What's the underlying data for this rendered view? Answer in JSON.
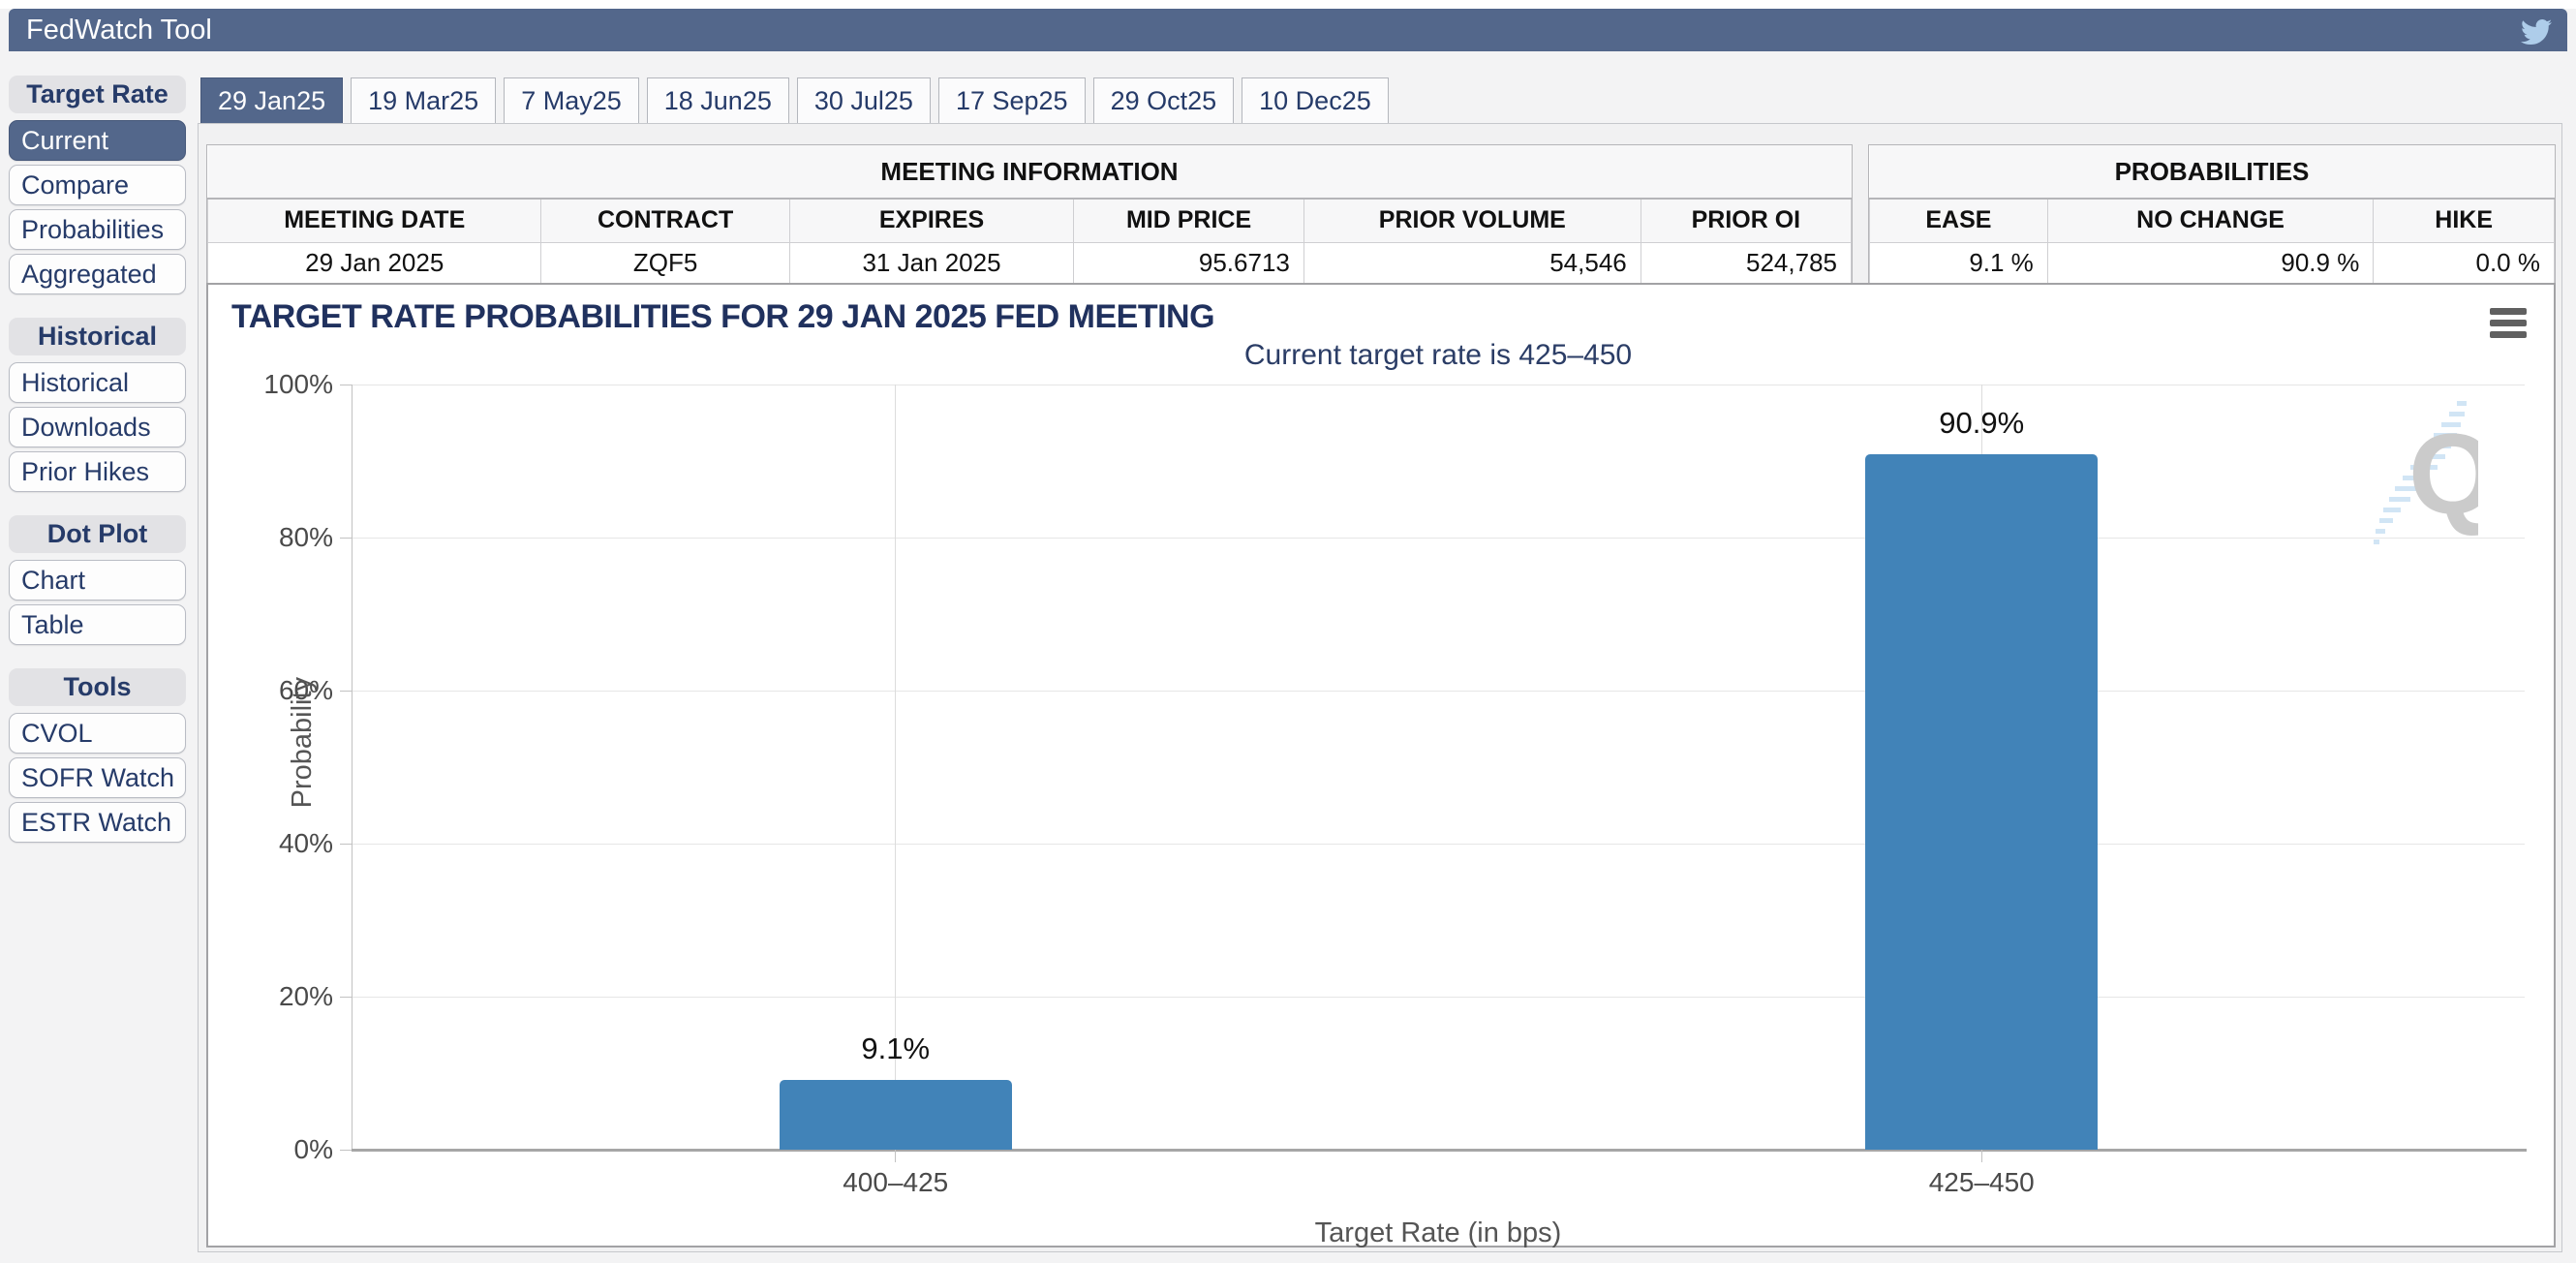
{
  "header": {
    "title": "FedWatch Tool"
  },
  "sidebar": {
    "groups": [
      {
        "title": "Target Rate",
        "items": [
          {
            "label": "Current",
            "selected": true
          },
          {
            "label": "Compare",
            "selected": false
          },
          {
            "label": "Probabilities",
            "selected": false
          },
          {
            "label": "Aggregated",
            "selected": false
          }
        ]
      },
      {
        "title": "Historical",
        "items": [
          {
            "label": "Historical",
            "selected": false
          },
          {
            "label": "Downloads",
            "selected": false
          },
          {
            "label": "Prior Hikes",
            "selected": false
          }
        ]
      },
      {
        "title": "Dot Plot",
        "items": [
          {
            "label": "Chart",
            "selected": false
          },
          {
            "label": "Table",
            "selected": false
          }
        ]
      },
      {
        "title": "Tools",
        "items": [
          {
            "label": "CVOL",
            "selected": false
          },
          {
            "label": "SOFR Watch",
            "selected": false
          },
          {
            "label": "ESTR Watch",
            "selected": false
          }
        ]
      }
    ]
  },
  "tabs": [
    {
      "label": "29 Jan25",
      "selected": true
    },
    {
      "label": "19 Mar25",
      "selected": false
    },
    {
      "label": "7 May25",
      "selected": false
    },
    {
      "label": "18 Jun25",
      "selected": false
    },
    {
      "label": "30 Jul25",
      "selected": false
    },
    {
      "label": "17 Sep25",
      "selected": false
    },
    {
      "label": "29 Oct25",
      "selected": false
    },
    {
      "label": "10 Dec25",
      "selected": false
    }
  ],
  "meeting_info": {
    "title": "MEETING INFORMATION",
    "columns": [
      "MEETING DATE",
      "CONTRACT",
      "EXPIRES",
      "MID PRICE",
      "PRIOR VOLUME",
      "PRIOR OI"
    ],
    "widths": [
      20.3,
      15.1,
      17.3,
      14.0,
      20.5,
      12.8
    ],
    "aligns": [
      "center",
      "center",
      "center",
      "right",
      "right",
      "right"
    ],
    "row": [
      "29 Jan 2025",
      "ZQF5",
      "31 Jan 2025",
      "95.6713",
      "54,546",
      "524,785"
    ]
  },
  "probabilities": {
    "title": "PROBABILITIES",
    "columns": [
      "EASE",
      "NO CHANGE",
      "HIKE"
    ],
    "widths": [
      26.0,
      47.6,
      26.4
    ],
    "aligns": [
      "right",
      "right",
      "right"
    ],
    "row": [
      "9.1 %",
      "90.9 %",
      "0.0 %"
    ]
  },
  "chart_data": {
    "type": "bar",
    "title": "TARGET RATE PROBABILITIES FOR 29 JAN 2025 FED MEETING",
    "subtitle": "Current target rate is 425–450",
    "categories": [
      "400–425",
      "425–450"
    ],
    "values": [
      9.1,
      90.9
    ],
    "bar_labels": [
      "9.1%",
      "90.9%"
    ],
    "xlabel": "Target Rate (in bps)",
    "ylabel": "Probability",
    "ylim": [
      0,
      100
    ],
    "yticks": [
      "0%",
      "20%",
      "40%",
      "60%",
      "80%",
      "100%"
    ],
    "grid": true,
    "legend": false,
    "bar_color": "#4183b8"
  },
  "colors": {
    "accent_slate": "#53678b",
    "navy_text": "#263b69",
    "bar_blue": "#4183b8",
    "twitter_blue": "#aecdea"
  }
}
